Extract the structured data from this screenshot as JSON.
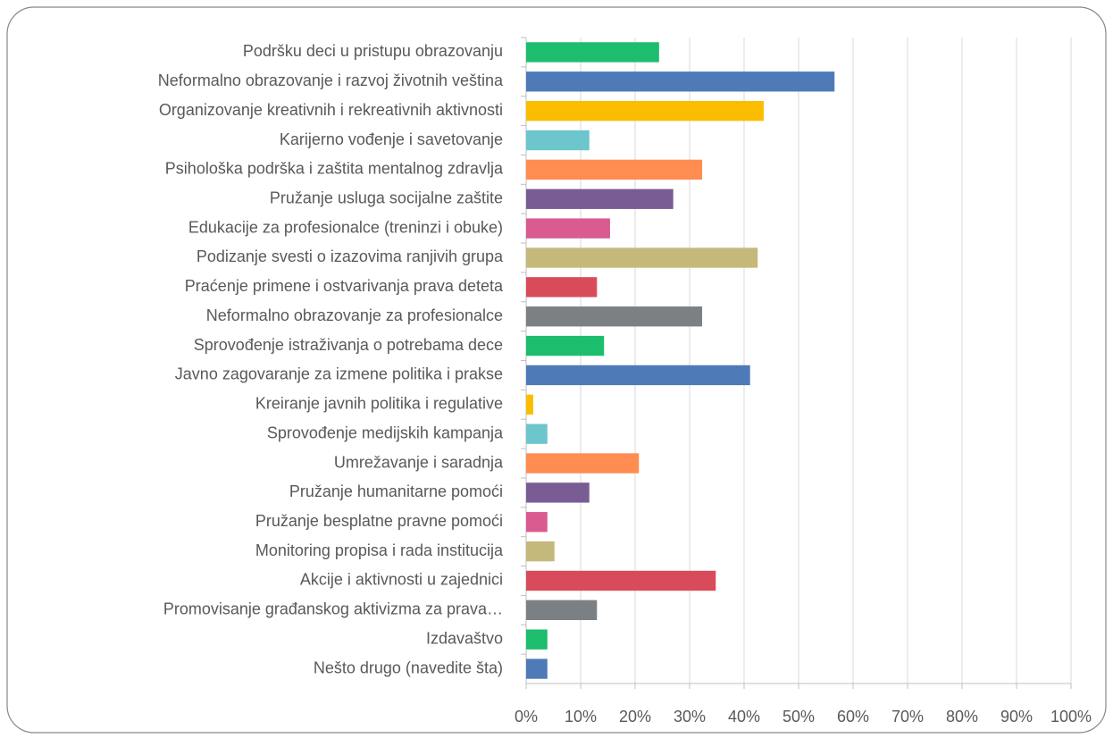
{
  "chart_data": {
    "type": "bar",
    "orientation": "horizontal",
    "categories": [
      "Podršku deci u pristupu obrazovanju",
      "Neformalno obrazovanje i razvoj životnih veština",
      "Organizovanje kreativnih i rekreativnih aktivnosti",
      "Karijerno vođenje i savetovanje",
      "Psihološka podrška i zaštita mentalnog zdravlja",
      "Pružanje usluga socijalne zaštite",
      "Edukacije za profesionalce (treninzi i obuke)",
      "Podizanje svesti o izazovima ranjivih grupa",
      "Praćenje primene i ostvarivanja prava deteta",
      "Neformalno obrazovanje za profesionalce",
      "Sprovođenje istraživanja o potrebama dece",
      "Javno zagovaranje za izmene politika i prakse",
      "Kreiranje javnih politika i regulative",
      "Sprovođenje medijskih kampanja",
      "Umrežavanje i saradnja",
      "Pružanje humanitarne pomoći",
      "Pružanje besplatne pravne pomoći",
      "Monitoring propisa i rada institucija",
      "Akcije i aktivnosti u zajednici",
      "Promovisanje građanskog aktivizma za prava…",
      "Izdavaštvo",
      "Nešto drugo (navedite šta)"
    ],
    "values": [
      24.4,
      56.6,
      43.6,
      11.6,
      32.3,
      27,
      15.4,
      42.5,
      13,
      32.3,
      14.3,
      41.1,
      1.3,
      3.9,
      20.7,
      11.6,
      3.9,
      5.2,
      34.8,
      13,
      3.9,
      3.9
    ],
    "colors": [
      "#1dbd6e",
      "#4f7ab8",
      "#fbbd00",
      "#6cc6cc",
      "#ff8c50",
      "#7a5c94",
      "#d95b90",
      "#c4b87a",
      "#d94b5b",
      "#7b8085",
      "#1dbd6e",
      "#4f7ab8",
      "#fbbd00",
      "#6cc6cc",
      "#ff8c50",
      "#7a5c94",
      "#d95b90",
      "#c4b87a",
      "#d94b5b",
      "#7b8085",
      "#1dbd6e",
      "#4f7ab8"
    ],
    "xlim": [
      0,
      100
    ],
    "xticks": [
      {
        "value": 0,
        "label": "0%"
      },
      {
        "value": 10,
        "label": "10%"
      },
      {
        "value": 20,
        "label": "20%"
      },
      {
        "value": 30,
        "label": "30%"
      },
      {
        "value": 40,
        "label": "40%"
      },
      {
        "value": 50,
        "label": "50%"
      },
      {
        "value": 60,
        "label": "60%"
      },
      {
        "value": 70,
        "label": "70%"
      },
      {
        "value": 80,
        "label": "80%"
      },
      {
        "value": 90,
        "label": "90%"
      },
      {
        "value": 100,
        "label": "100%"
      }
    ],
    "grid": true
  }
}
